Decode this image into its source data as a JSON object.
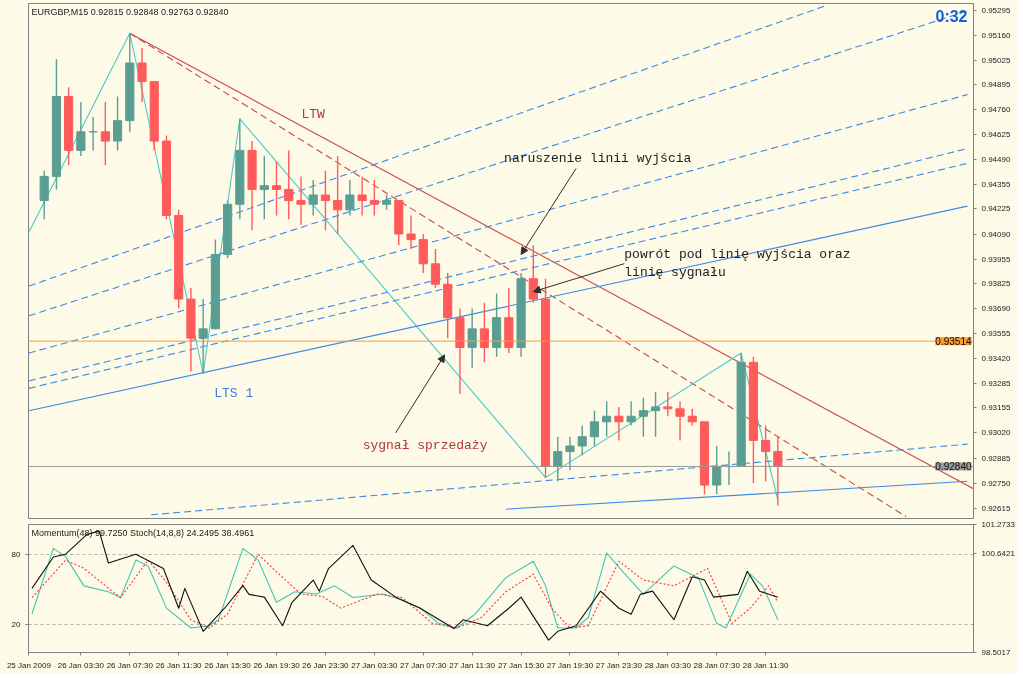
{
  "chart_data": [
    {
      "type": "candlestick",
      "title": "EURGBP,M15  0.92815 0.92848 0.92763 0.92840",
      "annotations": [
        {
          "text": "LTW",
          "x": "2009-01-26T22:30",
          "y": 0.9464
        },
        {
          "text": "LTS 1",
          "x": "2009-01-26T16:00",
          "y": 0.9338
        },
        {
          "text": "naruszenie linii wyjścia",
          "x": "2009-01-27T15:30",
          "y": 0.9398
        },
        {
          "text": "powrót pod linię wyjścia oraz\nlinię sygnału",
          "x": "2009-01-27T16:30",
          "y": 0.9378
        },
        {
          "text": "sygnał sprzedaży",
          "x": "2009-01-27T09:15",
          "y": 0.9344
        },
        "0:32"
      ],
      "x": [
        "2009-01-26T00:30",
        "2009-01-26T01:30",
        "2009-01-26T02:30",
        "2009-01-26T03:30",
        "2009-01-26T04:30",
        "2009-01-26T05:30",
        "2009-01-26T06:30",
        "2009-01-26T07:30",
        "2009-01-26T08:30",
        "2009-01-26T09:30",
        "2009-01-26T10:30",
        "2009-01-26T11:30",
        "2009-01-26T12:30",
        "2009-01-26T13:30",
        "2009-01-26T14:30",
        "2009-01-26T15:30",
        "2009-01-26T16:30",
        "2009-01-26T17:30",
        "2009-01-26T18:30",
        "2009-01-26T19:30",
        "2009-01-26T20:30",
        "2009-01-26T21:30",
        "2009-01-26T22:30",
        "2009-01-26T23:30",
        "2009-01-27T00:30",
        "2009-01-27T01:30",
        "2009-01-27T02:30",
        "2009-01-27T03:30",
        "2009-01-27T04:30",
        "2009-01-27T05:30",
        "2009-01-27T06:30",
        "2009-01-27T07:30",
        "2009-01-27T08:30",
        "2009-01-27T09:30",
        "2009-01-27T10:30",
        "2009-01-27T11:30",
        "2009-01-27T12:30",
        "2009-01-27T13:30",
        "2009-01-27T14:30",
        "2009-01-27T15:30",
        "2009-01-27T16:30",
        "2009-01-27T17:30",
        "2009-01-27T18:30",
        "2009-01-27T19:30",
        "2009-01-27T20:30",
        "2009-01-27T21:30",
        "2009-01-27T22:30",
        "2009-01-27T23:30",
        "2009-01-28T00:30",
        "2009-01-28T01:30",
        "2009-01-28T02:30",
        "2009-01-28T03:30",
        "2009-01-28T04:30",
        "2009-01-28T05:30",
        "2009-01-28T06:30",
        "2009-01-28T07:30",
        "2009-01-28T08:30",
        "2009-01-28T09:30",
        "2009-01-28T10:30",
        "2009-01-28T11:30",
        "2009-01-28T12:30"
      ],
      "ohlc": [
        [
          0.9427,
          0.9443,
          0.9417,
          0.944
        ],
        [
          0.944,
          0.9503,
          0.9433,
          0.9483
        ],
        [
          0.9483,
          0.9488,
          0.9446,
          0.9454
        ],
        [
          0.9454,
          0.948,
          0.9451,
          0.9464
        ],
        [
          0.9464,
          0.9472,
          0.9454,
          0.9464
        ],
        [
          0.9464,
          0.948,
          0.9446,
          0.9459
        ],
        [
          0.9459,
          0.9483,
          0.9454,
          0.947
        ],
        [
          0.947,
          0.9517,
          0.9464,
          0.9501
        ],
        [
          0.9501,
          0.9509,
          0.948,
          0.9491
        ],
        [
          0.9491,
          0.9491,
          0.9454,
          0.9459
        ],
        [
          0.9459,
          0.9462,
          0.9417,
          0.9419
        ],
        [
          0.9419,
          0.9422,
          0.9369,
          0.9374
        ],
        [
          0.9374,
          0.938,
          0.9335,
          0.9353
        ],
        [
          0.9353,
          0.9374,
          0.9334,
          0.9358
        ],
        [
          0.9358,
          0.9406,
          0.9358,
          0.9398
        ],
        [
          0.9398,
          0.9427,
          0.9396,
          0.9425
        ],
        [
          0.9425,
          0.9471,
          0.9417,
          0.9454
        ],
        [
          0.9454,
          0.9459,
          0.9411,
          0.9433
        ],
        [
          0.9433,
          0.9451,
          0.9417,
          0.9435
        ],
        [
          0.9435,
          0.9448,
          0.9419,
          0.9433
        ],
        [
          0.9433,
          0.9454,
          0.9417,
          0.9427
        ],
        [
          0.9427,
          0.944,
          0.9414,
          0.9425
        ],
        [
          0.9425,
          0.9438,
          0.9419,
          0.943
        ],
        [
          0.943,
          0.9443,
          0.9411,
          0.9427
        ],
        [
          0.9427,
          0.9451,
          0.9409,
          0.9422
        ],
        [
          0.9422,
          0.9438,
          0.9419,
          0.943
        ],
        [
          0.943,
          0.944,
          0.9419,
          0.9427
        ],
        [
          0.9427,
          0.9438,
          0.9419,
          0.9425
        ],
        [
          0.9425,
          0.943,
          0.9422,
          0.9427
        ],
        [
          0.9427,
          0.9427,
          0.9403,
          0.9409
        ],
        [
          0.9409,
          0.9419,
          0.9401,
          0.9406
        ],
        [
          0.9406,
          0.9409,
          0.9388,
          0.9393
        ],
        [
          0.9393,
          0.9401,
          0.938,
          0.9382
        ],
        [
          0.9382,
          0.9388,
          0.9353,
          0.9364
        ],
        [
          0.9364,
          0.9369,
          0.9323,
          0.9348
        ],
        [
          0.9348,
          0.9369,
          0.9337,
          0.9358
        ],
        [
          0.9358,
          0.9372,
          0.934,
          0.9348
        ],
        [
          0.9348,
          0.9377,
          0.9343,
          0.9364
        ],
        [
          0.9364,
          0.938,
          0.9345,
          0.9348
        ],
        [
          0.9348,
          0.9388,
          0.9343,
          0.9385
        ],
        [
          0.9385,
          0.9403,
          0.9372,
          0.9374
        ],
        [
          0.9374,
          0.9385,
          0.9278,
          0.9284
        ],
        [
          0.9284,
          0.93,
          0.9276,
          0.9292
        ],
        [
          0.9292,
          0.93,
          0.9282,
          0.9295
        ],
        [
          0.9295,
          0.9306,
          0.929,
          0.93
        ],
        [
          0.93,
          0.9314,
          0.9295,
          0.9308
        ],
        [
          0.9308,
          0.9319,
          0.93,
          0.9311
        ],
        [
          0.9311,
          0.9316,
          0.9298,
          0.9308
        ],
        [
          0.9308,
          0.9319,
          0.9306,
          0.9311
        ],
        [
          0.9311,
          0.9321,
          0.93,
          0.9314
        ],
        [
          0.9314,
          0.9324,
          0.93,
          0.9316
        ],
        [
          0.9316,
          0.9324,
          0.9311,
          0.9315
        ],
        [
          0.9315,
          0.9319,
          0.9298,
          0.9311
        ],
        [
          0.9311,
          0.9315,
          0.9306,
          0.9308
        ],
        [
          0.9308,
          0.9308,
          0.9269,
          0.9274
        ],
        [
          0.9274,
          0.9295,
          0.9269,
          0.9284
        ],
        [
          0.9284,
          0.9292,
          0.9274,
          0.9284
        ],
        [
          0.9284,
          0.9345,
          0.9284,
          0.934
        ],
        [
          0.934,
          0.9343,
          0.9275,
          0.9298
        ],
        [
          0.9298,
          0.9306,
          0.9276,
          0.9292
        ],
        [
          0.9292,
          0.93,
          0.9263,
          0.9284
        ]
      ],
      "colors": [
        "#5a9e93",
        "#5a9e93",
        "#ff5b5b",
        "#5a9e93",
        "#5a9e93",
        "#ff5b5b",
        "#5a9e93",
        "#5a9e93",
        "#ff5b5b",
        "#ff5b5b",
        "#ff5b5b",
        "#ff5b5b",
        "#ff5b5b",
        "#5a9e93",
        "#5a9e93",
        "#5a9e93",
        "#5a9e93",
        "#ff5b5b",
        "#5a9e93",
        "#ff5b5b",
        "#ff5b5b",
        "#ff5b5b",
        "#5a9e93",
        "#ff5b5b",
        "#ff5b5b",
        "#5a9e93",
        "#ff5b5b",
        "#ff5b5b",
        "#5a9e93",
        "#ff5b5b",
        "#ff5b5b",
        "#ff5b5b",
        "#ff5b5b",
        "#ff5b5b",
        "#ff5b5b",
        "#5a9e93",
        "#ff5b5b",
        "#5a9e93",
        "#ff5b5b",
        "#5a9e93",
        "#ff5b5b",
        "#ff5b5b",
        "#5a9e93",
        "#5a9e93",
        "#5a9e93",
        "#5a9e93",
        "#5a9e93",
        "#ff5b5b",
        "#5a9e93",
        "#5a9e93",
        "#5a9e93",
        "#ff5b5b",
        "#ff5b5b",
        "#ff5b5b",
        "#ff5b5b",
        "#5a9e93",
        "#5a9e93",
        "#5a9e93",
        "#ff5b5b",
        "#ff5b5b",
        "#ff5b5b"
      ],
      "series": [
        {
          "type": "line",
          "color": "#c84848",
          "line_style": "solid",
          "x": [
            "2009-01-26T07:30",
            "2009-01-29T04:30"
          ],
          "values": [
            0.9517,
            0.9272
          ]
        },
        {
          "type": "line",
          "color": "#c84848",
          "line_style": "dashed",
          "x": [
            "2009-01-26T07:30",
            "2009-01-28T23:00"
          ],
          "values": [
            0.9517,
            0.9257
          ]
        },
        {
          "type": "line",
          "color": "#44cccc",
          "line_style": "solid",
          "x": [
            "2009-01-25T23:15",
            "2009-01-26T07:30",
            "2009-01-26T13:30",
            "2009-01-26T16:30",
            "2009-01-27T17:30",
            "2009-01-28T09:30",
            "2009-01-28T12:30"
          ],
          "values": [
            0.941,
            0.9517,
            0.9334,
            0.9471,
            0.9278,
            0.9345,
            0.9266
          ]
        },
        {
          "type": "line",
          "color": "#3b8ae6",
          "line_style": "solid",
          "x": [
            "2009-01-25T23:15",
            "2009-01-29T04:00"
          ],
          "values": [
            0.9314,
            0.9424
          ]
        },
        {
          "type": "line",
          "color": "#3b8ae6",
          "line_style": "solid",
          "x": [
            "2009-01-27T14:15",
            "2009-01-29T04:00"
          ],
          "values": [
            0.9261,
            0.9276
          ]
        },
        {
          "type": "line",
          "color": "#3b8ae6",
          "line_style": "dashed",
          "x": [
            "2009-01-26T09:15",
            "2009-01-29T04:00"
          ],
          "values": [
            0.9258,
            0.9296
          ]
        },
        {
          "type": "line",
          "color": "#3b8ae6",
          "line_style": "dashed",
          "x": [
            "2009-01-25T23:15",
            "2009-01-28T16:30"
          ],
          "values": [
            0.9381,
            0.9532
          ]
        },
        {
          "type": "line",
          "color": "#3b8ae6",
          "line_style": "dashed",
          "x": [
            "2009-01-25T23:15",
            "2009-01-29T04:00"
          ],
          "values": [
            0.9365,
            0.9529
          ]
        },
        {
          "type": "line",
          "color": "#3b8ae6",
          "line_style": "dashed",
          "x": [
            "2009-01-25T23:15",
            "2009-01-29T04:00"
          ],
          "values": [
            0.9345,
            0.9484
          ]
        },
        {
          "type": "line",
          "color": "#3b8ae6",
          "line_style": "dashed",
          "x": [
            "2009-01-25T23:15",
            "2009-01-29T04:00"
          ],
          "values": [
            0.933,
            0.9455
          ]
        },
        {
          "type": "line",
          "color": "#3b8ae6",
          "line_style": "dashed",
          "x": [
            "2009-01-25T23:15",
            "2009-01-29T04:00"
          ],
          "values": [
            0.9326,
            0.9447
          ]
        }
      ],
      "ref_lines": [
        {
          "axis": "y",
          "value": 0.93514,
          "label": "0.93514",
          "color": "#ff9933"
        },
        {
          "axis": "y",
          "value": 0.9284,
          "label": "0.92840",
          "color": "#9a9a9a"
        }
      ],
      "xlim": [
        "2009-01-25T23:13",
        "2009-01-29T04:30"
      ],
      "ylim": [
        0.9256,
        0.9533
      ],
      "yticks": [
        0.95295,
        {
          "value": 0.9516,
          "label": "0.95160"
        },
        0.95025,
        0.94895,
        {
          "value": 0.9476,
          "label": "0.94760"
        },
        0.94625,
        {
          "value": 0.9449,
          "label": "0.94490"
        },
        0.94355,
        0.94225,
        {
          "value": 0.9409,
          "label": "0.94090"
        },
        0.93955,
        0.93825,
        {
          "value": 0.9369,
          "label": "0.93690"
        },
        0.93555,
        {
          "value": 0.9342,
          "label": "0.93420"
        },
        0.93285,
        0.93155,
        {
          "value": 0.9302,
          "label": "0.93020"
        },
        0.92885,
        {
          "value": 0.9275,
          "label": "0.92750"
        },
        0.92615
      ],
      "tick_labels": "y"
    },
    {
      "type": "line",
      "title": "Momentum(48) 99.7250  Stoch(14,8,8) 24.2495 38.4961",
      "series": [
        {
          "color": "#44c4b4",
          "line_style": "solid",
          "x": [
            "2009-01-25T23:30",
            "2009-01-26T01:15",
            "2009-01-26T02:15",
            "2009-01-26T03:45",
            "2009-01-26T05:45",
            "2009-01-26T06:45",
            "2009-01-26T08:00",
            "2009-01-26T09:00",
            "2009-01-26T10:30",
            "2009-01-26T12:30",
            "2009-01-26T14:00",
            "2009-01-26T14:45",
            "2009-01-26T16:45",
            "2009-01-26T18:00",
            "2009-01-26T19:30",
            "2009-01-26T21:00",
            "2009-01-26T22:45",
            "2009-01-27T00:15",
            "2009-01-27T01:45",
            "2009-01-27T04:15",
            "2009-01-27T05:45",
            "2009-01-27T07:15",
            "2009-01-27T08:45",
            "2009-01-27T10:15",
            "2009-01-27T11:45",
            "2009-01-27T14:15",
            "2009-01-27T16:30",
            "2009-01-27T17:30",
            "2009-01-27T18:30",
            "2009-01-27T20:00",
            "2009-01-27T21:00",
            "2009-01-27T22:30",
            "2009-01-28T00:00",
            "2009-01-28T01:30",
            "2009-01-28T04:00",
            "2009-01-28T06:00",
            "2009-01-28T07:30",
            "2009-01-28T08:15",
            "2009-01-28T10:15",
            "2009-01-28T11:15",
            "2009-01-28T12:30"
          ],
          "values": [
            29,
            85,
            78,
            53,
            48,
            43,
            75,
            70,
            34,
            17,
            19,
            24,
            85,
            75,
            39,
            48,
            46,
            53,
            43,
            46,
            41,
            34,
            21,
            17,
            29,
            60,
            74,
            53,
            17,
            17,
            26,
            81,
            63,
            46,
            70,
            60,
            21,
            17,
            63,
            53,
            24
          ]
        },
        {
          "color": "#ff3333",
          "line_style": "dotted",
          "x": [
            "2009-01-25T23:30",
            "2009-01-26T02:15",
            "2009-01-26T03:45",
            "2009-01-26T05:45",
            "2009-01-26T06:45",
            "2009-01-26T09:00",
            "2009-01-26T10:30",
            "2009-01-26T12:30",
            "2009-01-26T14:00",
            "2009-01-26T15:30",
            "2009-01-26T18:00",
            "2009-01-26T19:30",
            "2009-01-26T21:30",
            "2009-01-26T23:15",
            "2009-01-27T00:45",
            "2009-01-27T03:45",
            "2009-01-27T05:45",
            "2009-01-27T08:15",
            "2009-01-27T10:15",
            "2009-01-27T12:15",
            "2009-01-27T14:15",
            "2009-01-27T16:30",
            "2009-01-27T18:00",
            "2009-01-27T19:30",
            "2009-01-27T21:00",
            "2009-01-27T23:30",
            "2009-01-28T01:30",
            "2009-01-28T04:00",
            "2009-01-28T06:45",
            "2009-01-28T08:45",
            "2009-01-28T10:15",
            "2009-01-28T11:45",
            "2009-01-28T12:30"
          ],
          "values": [
            43,
            75,
            68,
            51,
            43,
            75,
            56,
            24,
            17,
            29,
            80,
            65,
            46,
            44,
            34,
            46,
            43,
            21,
            17,
            26,
            48,
            63,
            34,
            17,
            19,
            74,
            58,
            53,
            68,
            21,
            34,
            53,
            39
          ]
        },
        {
          "color": "#111111",
          "line_style": "solid",
          "axis": "y2",
          "x": [
            "2009-01-25T23:30",
            "2009-01-26T01:15",
            "2009-01-26T02:15",
            "2009-01-26T04:00",
            "2009-01-26T05:00",
            "2009-01-26T05:45",
            "2009-01-26T08:00",
            "2009-01-26T10:15",
            "2009-01-26T11:30",
            "2009-01-26T12:00",
            "2009-01-26T13:30",
            "2009-01-26T15:15",
            "2009-01-26T16:45",
            "2009-01-26T17:15",
            "2009-01-26T18:30",
            "2009-01-26T20:00",
            "2009-01-26T20:45",
            "2009-01-26T22:30",
            "2009-01-26T23:00",
            "2009-01-26T23:45",
            "2009-01-27T01:45",
            "2009-01-27T03:15",
            "2009-01-27T05:15",
            "2009-01-27T07:15",
            "2009-01-27T10:00",
            "2009-01-27T10:45",
            "2009-01-27T12:45",
            "2009-01-27T14:30",
            "2009-01-27T15:30",
            "2009-01-27T17:45",
            "2009-01-27T18:30",
            "2009-01-27T20:00",
            "2009-01-27T22:00",
            "2009-01-27T23:30",
            "2009-01-28T00:30",
            "2009-01-28T01:15",
            "2009-01-28T02:15",
            "2009-01-28T04:00",
            "2009-01-28T05:30",
            "2009-01-28T06:30",
            "2009-01-28T07:15",
            "2009-01-28T09:15",
            "2009-01-28T10:00",
            "2009-01-28T11:00",
            "2009-01-28T12:30"
          ],
          "values": [
            99.89,
            100.57,
            100.63,
            101.06,
            101.13,
            100.44,
            100.63,
            100.32,
            99.46,
            99.89,
            98.96,
            99.46,
            99.95,
            99.76,
            99.7,
            99.08,
            99.58,
            100.07,
            99.83,
            100.32,
            100.82,
            100.07,
            99.7,
            99.46,
            99.02,
            99.21,
            99.08,
            99.46,
            99.7,
            98.77,
            98.96,
            99.08,
            99.83,
            99.46,
            99.33,
            99.76,
            99.83,
            99.21,
            100.14,
            100.07,
            99.7,
            99.76,
            100.26,
            99.83,
            99.7
          ]
        }
      ],
      "xlim": [
        "2009-01-25T23:13",
        "2009-01-29T04:30"
      ],
      "ylim": [
        -3.9,
        105.4
      ],
      "yticks": [
        80,
        20
      ],
      "y2lim": [
        98.5017,
        101.2733
      ],
      "y2ticks": [
        101.2733,
        100.6421,
        98.5017
      ],
      "xticks": [
        {
          "value": "2009-01-25T23:15",
          "label": "25 Jan 2009"
        },
        {
          "value": "2009-01-26T03:30",
          "label": "26 Jan 03:30"
        },
        {
          "value": "2009-01-26T07:30",
          "label": "26 Jan 07:30"
        },
        {
          "value": "2009-01-26T11:30",
          "label": "26 Jan 11:30"
        },
        {
          "value": "2009-01-26T15:30",
          "label": "26 Jan 15:30"
        },
        {
          "value": "2009-01-26T19:30",
          "label": "26 Jan 19:30"
        },
        {
          "value": "2009-01-26T23:30",
          "label": "26 Jan 23:30"
        },
        {
          "value": "2009-01-27T03:30",
          "label": "27 Jan 03:30"
        },
        {
          "value": "2009-01-27T07:30",
          "label": "27 Jan 07:30"
        },
        {
          "value": "2009-01-27T11:30",
          "label": "27 Jan 11:30"
        },
        {
          "value": "2009-01-27T15:30",
          "label": "27 Jan 15:30"
        },
        {
          "value": "2009-01-27T19:30",
          "label": "27 Jan 19:30"
        },
        {
          "value": "2009-01-27T23:30",
          "label": "27 Jan 23:30"
        },
        {
          "value": "2009-01-28T03:30",
          "label": "28 Jan 03:30"
        },
        {
          "value": "2009-01-28T07:30",
          "label": "28 Jan 07:30"
        },
        {
          "value": "2009-01-28T11:30",
          "label": "28 Jan 11:30"
        }
      ],
      "grid": "y"
    }
  ]
}
